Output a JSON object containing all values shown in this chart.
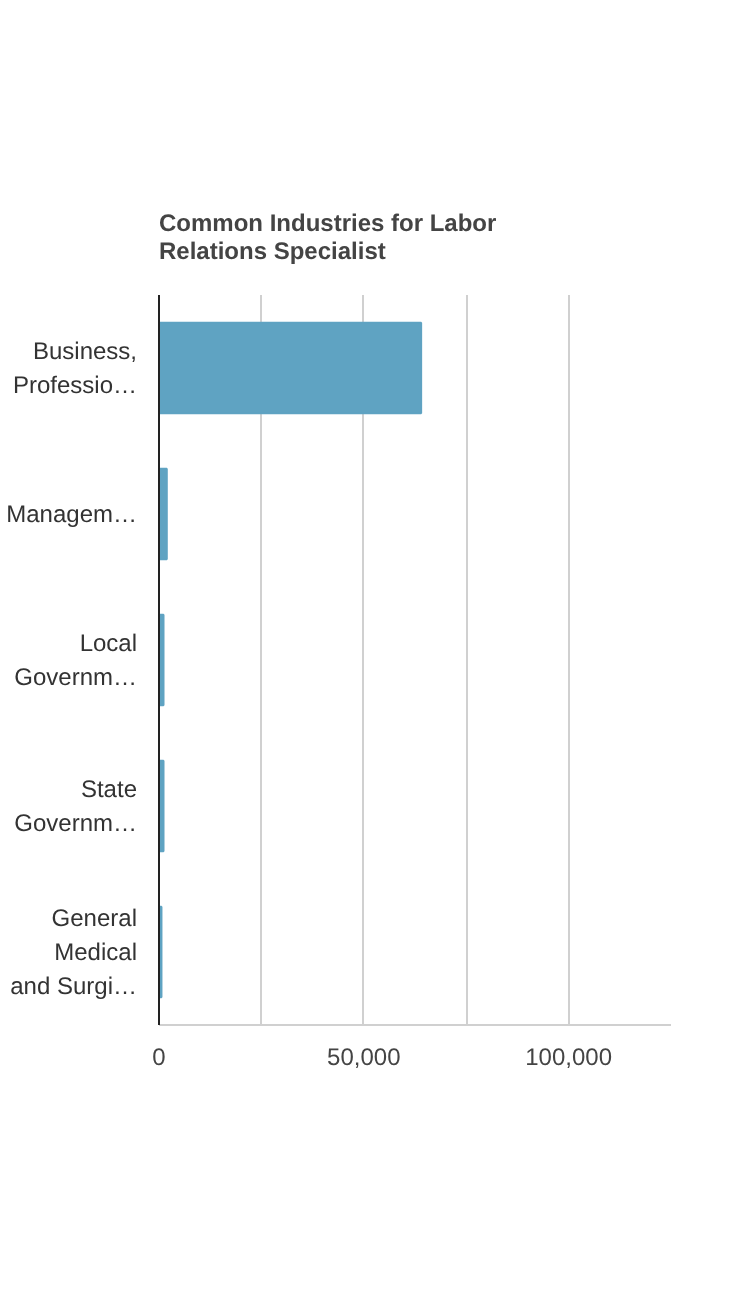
{
  "chart_data": {
    "type": "bar",
    "orientation": "horizontal",
    "title": "Common Industries for Labor Relations Specialist",
    "categories": [
      "Business, Professio…",
      "Managem…",
      "Local Governm…",
      "State Governm…",
      "General Medical and Surgi…"
    ],
    "series": [
      {
        "color": "#5fa3c2",
        "values": [
          64000,
          1900,
          1100,
          1100,
          600
        ]
      }
    ],
    "xlim": [
      0,
      125000
    ],
    "xticks": [
      0,
      {
        "value": 25000,
        "label": null
      },
      {
        "value": 50000,
        "label": "50,000"
      },
      {
        "value": 75000,
        "label": null
      },
      {
        "value": 100000,
        "label": "100,000"
      }
    ],
    "grid": "x"
  }
}
